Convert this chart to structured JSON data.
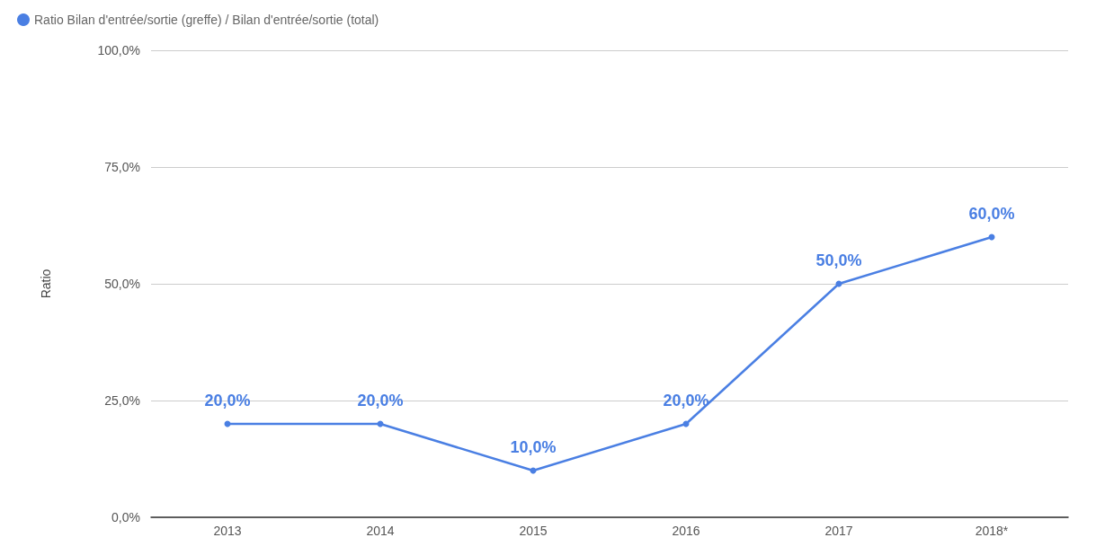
{
  "chart_data": {
    "type": "line",
    "ylabel": "Ratio",
    "categories": [
      "2013",
      "2014",
      "2015",
      "2016",
      "2017",
      "2018*"
    ],
    "series": [
      {
        "name": "Ratio Bilan d'entrée/sortie (greffe) / Bilan d'entrée/sortie (total)",
        "color": "#4a7fe3",
        "values": [
          20,
          20,
          10,
          20,
          50,
          60
        ],
        "value_labels": [
          "20,0%",
          "20,0%",
          "10,0%",
          "20,0%",
          "50,0%",
          "60,0%"
        ]
      }
    ],
    "ylim": [
      0,
      100
    ],
    "yticks": [
      {
        "value": 0,
        "label": "0,0%"
      },
      {
        "value": 25,
        "label": "25,0%"
      },
      {
        "value": 50,
        "label": "50,0%"
      },
      {
        "value": 75,
        "label": "75,0%"
      },
      {
        "value": 100,
        "label": "100,0%"
      }
    ],
    "grid": "y",
    "legend": "top left",
    "marker": "circle",
    "line_style": "solid"
  }
}
